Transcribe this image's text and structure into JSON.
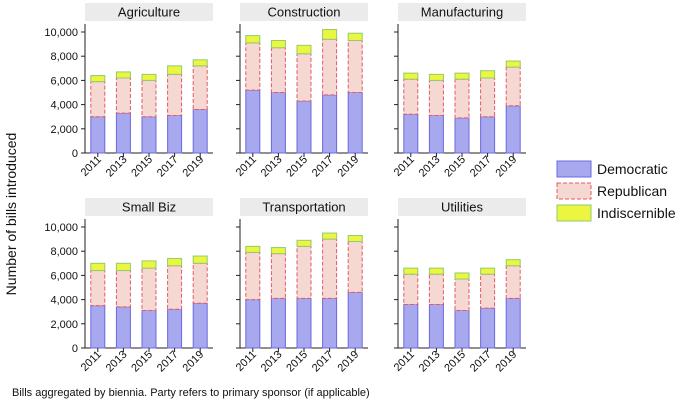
{
  "chart_data": {
    "type": "bar",
    "stacked": true,
    "y_label": "Number of bills introduced",
    "caption": "Bills aggregated by biennia. Party refers to primary sponsor (if applicable)",
    "categories": [
      "2011",
      "2013",
      "2015",
      "2017",
      "2019"
    ],
    "ylim": [
      0,
      10000
    ],
    "y_ticks": [
      "0",
      "2,000",
      "4,000",
      "6,000",
      "8,000",
      "10,000"
    ],
    "legend": [
      {
        "name": "Democratic",
        "fill": "#a8a8ee",
        "stroke": "#6a6ae0",
        "dashed": false
      },
      {
        "name": "Republican",
        "fill": "#f6d8d2",
        "stroke": "#e35a66",
        "dashed": true
      },
      {
        "name": "Indiscernible",
        "fill": "#ecf540",
        "stroke": "#8fcc70",
        "dashed": false
      }
    ],
    "legend_placement": "right",
    "panels": [
      {
        "title": "Agriculture",
        "series": [
          {
            "name": "Democratic",
            "values": [
              3000,
              3300,
              3000,
              3100,
              3600
            ]
          },
          {
            "name": "Republican",
            "values": [
              2900,
              2900,
              3000,
              3400,
              3600
            ]
          },
          {
            "name": "Indiscernible",
            "values": [
              500,
              500,
              500,
              700,
              500
            ]
          }
        ]
      },
      {
        "title": "Construction",
        "series": [
          {
            "name": "Democratic",
            "values": [
              5200,
              5000,
              4300,
              4800,
              5000
            ]
          },
          {
            "name": "Republican",
            "values": [
              3900,
              3700,
              3900,
              4600,
              4300
            ]
          },
          {
            "name": "Indiscernible",
            "values": [
              600,
              600,
              700,
              800,
              600
            ]
          }
        ]
      },
      {
        "title": "Manufacturing",
        "series": [
          {
            "name": "Democratic",
            "values": [
              3200,
              3100,
              2900,
              3000,
              3900
            ]
          },
          {
            "name": "Republican",
            "values": [
              2900,
              2900,
              3200,
              3200,
              3200
            ]
          },
          {
            "name": "Indiscernible",
            "values": [
              500,
              500,
              500,
              600,
              500
            ]
          }
        ]
      },
      {
        "title": "Small Biz",
        "series": [
          {
            "name": "Democratic",
            "values": [
              3500,
              3400,
              3100,
              3200,
              3700
            ]
          },
          {
            "name": "Republican",
            "values": [
              2900,
              3000,
              3500,
              3600,
              3300
            ]
          },
          {
            "name": "Indiscernible",
            "values": [
              600,
              600,
              600,
              600,
              600
            ]
          }
        ]
      },
      {
        "title": "Transportation",
        "series": [
          {
            "name": "Democratic",
            "values": [
              4000,
              4100,
              4100,
              4100,
              4600
            ]
          },
          {
            "name": "Republican",
            "values": [
              3900,
              3700,
              4300,
              4900,
              4200
            ]
          },
          {
            "name": "Indiscernible",
            "values": [
              500,
              500,
              500,
              500,
              500
            ]
          }
        ]
      },
      {
        "title": "Utilities",
        "series": [
          {
            "name": "Democratic",
            "values": [
              3600,
              3600,
              3100,
              3300,
              4100
            ]
          },
          {
            "name": "Republican",
            "values": [
              2500,
              2500,
              2600,
              2800,
              2700
            ]
          },
          {
            "name": "Indiscernible",
            "values": [
              500,
              500,
              500,
              500,
              500
            ]
          }
        ]
      }
    ]
  }
}
